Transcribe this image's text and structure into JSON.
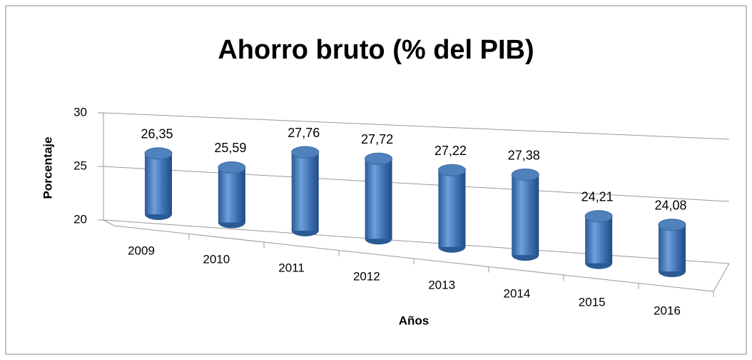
{
  "chart_data": {
    "type": "bar",
    "title": "Ahorro bruto (% del PIB)",
    "x_label": "Años",
    "y_label": "Porcentaje",
    "categories": [
      "2009",
      "2010",
      "2011",
      "2012",
      "2013",
      "2014",
      "2015",
      "2016"
    ],
    "values": [
      26.35,
      25.59,
      27.76,
      27.72,
      27.22,
      27.38,
      24.21,
      24.08
    ],
    "value_labels": [
      "26,35",
      "25,59",
      "27,76",
      "27,72",
      "27,22",
      "27,38",
      "24,21",
      "24,08"
    ],
    "color": "#4f81bd",
    "ylim": [
      20,
      30
    ],
    "yticks": [
      20,
      25,
      30
    ],
    "grid": true
  }
}
